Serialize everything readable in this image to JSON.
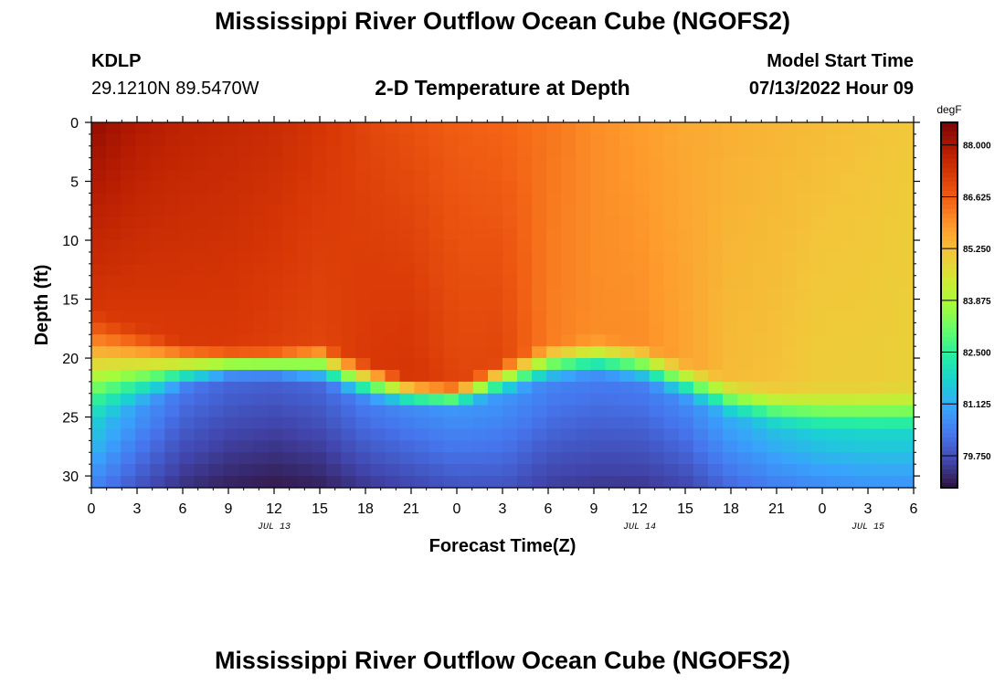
{
  "header": {
    "title": "Mississippi River Outflow Ocean Cube (NGOFS2)",
    "station_id": "KDLP",
    "station_coords": "29.1210N  89.5470W",
    "plot_title": "2-D Temperature at Depth",
    "model_start_label": "Model Start Time",
    "model_start_value": "07/13/2022 Hour 09"
  },
  "footer": {
    "title": "Mississippi River Outflow Ocean Cube (NGOFS2)"
  },
  "chart_data": {
    "type": "heatmap",
    "title": "2-D Temperature at Depth",
    "xlabel": "Forecast Time(Z)",
    "ylabel": "Depth (ft)",
    "x_ticks": [
      "0",
      "3",
      "6",
      "9",
      "12",
      "15",
      "18",
      "21",
      "0",
      "3",
      "6",
      "9",
      "12",
      "15",
      "18",
      "21",
      "0",
      "3",
      "6"
    ],
    "x_range_hours": [
      0,
      54
    ],
    "date_labels": [
      {
        "text": "JUL 13",
        "hour": 12
      },
      {
        "text": "JUL 14",
        "hour": 36
      },
      {
        "text": "JUL 15",
        "hour": 51
      }
    ],
    "y_ticks": [
      0,
      5,
      10,
      15,
      20,
      25,
      30
    ],
    "ylim": [
      0,
      31
    ],
    "y_inverted": true,
    "colorbar": {
      "unit": "degF",
      "ticks": [
        "88.000",
        "86.625",
        "85.250",
        "83.875",
        "82.500",
        "81.125",
        "79.750"
      ],
      "range": [
        78.9,
        88.6
      ],
      "colors": [
        "#30123b",
        "#4145ab",
        "#4675ed",
        "#39a2fc",
        "#1bcfd4",
        "#24eca6",
        "#61fc6c",
        "#a4fc3b",
        "#d1e834",
        "#f3c63a",
        "#fe9b2d",
        "#f36315",
        "#d93806",
        "#b11901",
        "#7a0402"
      ]
    },
    "temperature_model": {
      "x_hours": [
        0,
        3,
        6,
        9,
        12,
        15,
        18,
        21,
        24,
        27,
        30,
        33,
        36,
        39,
        42,
        45,
        48,
        51,
        54
      ],
      "surface_degF": [
        88.3,
        87.9,
        87.7,
        87.6,
        87.5,
        87.3,
        87.0,
        86.8,
        86.6,
        86.5,
        86.3,
        86.0,
        85.8,
        85.6,
        85.5,
        85.4,
        85.3,
        85.2,
        85.1
      ],
      "mid_degF": [
        87.3,
        87.2,
        87.2,
        87.2,
        87.1,
        87.0,
        87.2,
        87.3,
        87.0,
        87.0,
        86.2,
        86.0,
        86.0,
        85.7,
        85.3,
        85.2,
        85.0,
        85.0,
        84.9
      ],
      "thermocline_top_ft": [
        15,
        17,
        18.5,
        19,
        19,
        18.5,
        20,
        21.5,
        22,
        20,
        18.5,
        18,
        18.5,
        20,
        21.5,
        22,
        22,
        22,
        22
      ],
      "thermocline_bottom_ft": [
        27,
        25,
        23,
        22,
        22,
        22.5,
        24,
        24.5,
        24.5,
        23.5,
        22.5,
        22,
        22.5,
        24,
        25.5,
        26.5,
        27,
        27,
        27
      ],
      "bottom_degF": [
        80.5,
        79.8,
        79.3,
        79.1,
        79.0,
        79.1,
        79.4,
        79.6,
        79.8,
        79.8,
        79.5,
        79.4,
        79.4,
        79.6,
        80.1,
        80.4,
        80.6,
        80.7,
        80.7
      ]
    }
  }
}
